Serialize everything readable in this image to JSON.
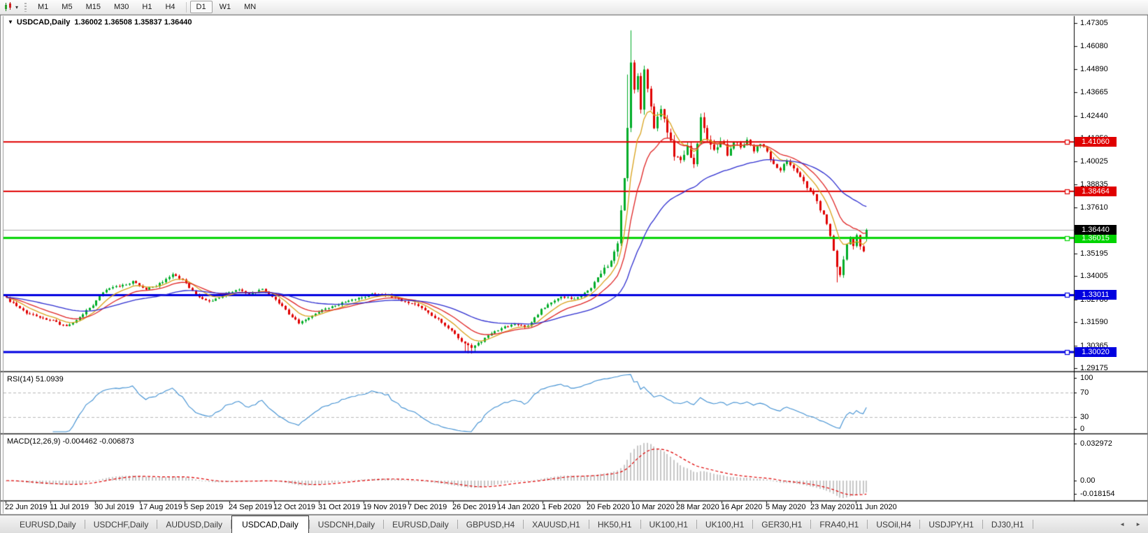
{
  "toolbar": {
    "dropdown_caret": "▾",
    "timeframes": [
      {
        "label": "M1",
        "active": false
      },
      {
        "label": "M5",
        "active": false
      },
      {
        "label": "M15",
        "active": false
      },
      {
        "label": "M30",
        "active": false
      },
      {
        "label": "H1",
        "active": false
      },
      {
        "label": "H4",
        "active": false
      },
      {
        "label": "D1",
        "active": true
      },
      {
        "label": "W1",
        "active": false
      },
      {
        "label": "MN",
        "active": false
      }
    ]
  },
  "chart": {
    "title": "USDCAD,Daily",
    "ohlc": "1.36002 1.36508 1.35837 1.36440",
    "dropdown_caret": "▼"
  },
  "chart_data": {
    "type": "candlestick",
    "symbol": "USDCAD",
    "period": "Daily",
    "last_candle": {
      "open": 1.36002,
      "high": 1.36508,
      "low": 1.35837,
      "close": 1.3644
    },
    "current_price": {
      "label": "1.36440",
      "value": 1.3644,
      "tag_color": "#000000"
    },
    "y_axis_ticks": [
      "1.47305",
      "1.46080",
      "1.44890",
      "1.43665",
      "1.42440",
      "1.41250",
      "1.40025",
      "1.38835",
      "1.37610",
      "1.36385",
      "1.35195",
      "1.34005",
      "1.32780",
      "1.31590",
      "1.30365",
      "1.29175"
    ],
    "x_axis_labels": [
      "22 Jun 2019",
      "11 Jul 2019",
      "30 Jul 2019",
      "17 Aug 2019",
      "5 Sep 2019",
      "24 Sep 2019",
      "12 Oct 2019",
      "31 Oct 2019",
      "19 Nov 2019",
      "7 Dec 2019",
      "26 Dec 2019",
      "14 Jan 2020",
      "1 Feb 2020",
      "20 Feb 2020",
      "10 Mar 2020",
      "28 Mar 2020",
      "16 Apr 2020",
      "5 May 2020",
      "23 May 2020",
      "11 Jun 2020"
    ],
    "horizontal_lines": [
      {
        "label": "1.41060",
        "value": 1.4106,
        "color": "#e00000",
        "width": 2
      },
      {
        "label": "1.38464",
        "value": 1.38464,
        "color": "#e00000",
        "width": 2
      },
      {
        "label": "1.36015",
        "value": 1.36015,
        "color": "#00d400",
        "width": 3
      },
      {
        "label": "1.33011",
        "value": 1.33011,
        "color": "#0000e0",
        "width": 3
      },
      {
        "label": "1.30020",
        "value": 1.3002,
        "color": "#0000e0",
        "width": 3
      }
    ],
    "candle_colors": {
      "bull": "#00ad28",
      "bear": "#e00000"
    },
    "moving_averages": [
      {
        "period": 8,
        "color": "#d9a21b"
      },
      {
        "period": 16,
        "color": "#e02525"
      },
      {
        "period": 42,
        "color": "#2d2dd0"
      }
    ],
    "indicators": {
      "rsi": {
        "label": "RSI(14) 51.0939",
        "value": 51.0939,
        "levels": [
          70,
          30
        ],
        "axis_ticks": [
          "100",
          "70",
          "30",
          "0"
        ],
        "line_color": "#3f8fd2"
      },
      "macd": {
        "label": "MACD(12,26,9) -0.004462 -0.006873",
        "macd_value": -0.004462,
        "signal_value": -0.006873,
        "axis_ticks": [
          "0.032972",
          "0.00",
          "-0.018154"
        ],
        "histogram_color": "#c8c8c8",
        "signal_color": "#e00000"
      }
    },
    "price_anchors": [
      [
        0,
        1.3285
      ],
      [
        3,
        1.324
      ],
      [
        6,
        1.321
      ],
      [
        10,
        1.3185
      ],
      [
        14,
        1.3165
      ],
      [
        18,
        1.3135
      ],
      [
        22,
        1.3185
      ],
      [
        26,
        1.325
      ],
      [
        30,
        1.333
      ],
      [
        34,
        1.335
      ],
      [
        38,
        1.3372
      ],
      [
        42,
        1.333
      ],
      [
        46,
        1.336
      ],
      [
        50,
        1.3415
      ],
      [
        53,
        1.338
      ],
      [
        57,
        1.33
      ],
      [
        61,
        1.3268
      ],
      [
        65,
        1.33
      ],
      [
        69,
        1.333
      ],
      [
        73,
        1.331
      ],
      [
        77,
        1.333
      ],
      [
        81,
        1.328
      ],
      [
        85,
        1.32
      ],
      [
        88,
        1.3155
      ],
      [
        91,
        1.318
      ],
      [
        95,
        1.322
      ],
      [
        99,
        1.3245
      ],
      [
        103,
        1.327
      ],
      [
        107,
        1.329
      ],
      [
        111,
        1.331
      ],
      [
        115,
        1.33
      ],
      [
        119,
        1.327
      ],
      [
        123,
        1.325
      ],
      [
        127,
        1.321
      ],
      [
        131,
        1.316
      ],
      [
        134,
        1.311
      ],
      [
        137,
        1.306
      ],
      [
        140,
        1.302
      ],
      [
        143,
        1.306
      ],
      [
        146,
        1.31
      ],
      [
        149,
        1.313
      ],
      [
        153,
        1.3145
      ],
      [
        157,
        1.3135
      ],
      [
        161,
        1.3225
      ],
      [
        164,
        1.3265
      ],
      [
        167,
        1.3295
      ],
      [
        170,
        1.328
      ],
      [
        173,
        1.33
      ],
      [
        176,
        1.334
      ],
      [
        179,
        1.342
      ],
      [
        182,
        1.348
      ],
      [
        184,
        1.356
      ],
      [
        186,
        1.39
      ],
      [
        187,
        1.418
      ],
      [
        188,
        1.452
      ],
      [
        189,
        1.439
      ],
      [
        190,
        1.445
      ],
      [
        191,
        1.426
      ],
      [
        192,
        1.447
      ],
      [
        193,
        1.439
      ],
      [
        195,
        1.419
      ],
      [
        197,
        1.429
      ],
      [
        199,
        1.416
      ],
      [
        201,
        1.404
      ],
      [
        203,
        1.401
      ],
      [
        205,
        1.408
      ],
      [
        207,
        1.399
      ],
      [
        209,
        1.423
      ],
      [
        211,
        1.412
      ],
      [
        213,
        1.406
      ],
      [
        215,
        1.411
      ],
      [
        217,
        1.405
      ],
      [
        219,
        1.412
      ],
      [
        221,
        1.409
      ],
      [
        223,
        1.411
      ],
      [
        225,
        1.406
      ],
      [
        227,
        1.41
      ],
      [
        229,
        1.405
      ],
      [
        231,
        1.399
      ],
      [
        233,
        1.396
      ],
      [
        235,
        1.401
      ],
      [
        237,
        1.397
      ],
      [
        239,
        1.392
      ],
      [
        241,
        1.387
      ],
      [
        243,
        1.383
      ],
      [
        245,
        1.375
      ],
      [
        247,
        1.368
      ],
      [
        249,
        1.354
      ],
      [
        250,
        1.346
      ],
      [
        251,
        1.341
      ],
      [
        252,
        1.348
      ],
      [
        253,
        1.356
      ],
      [
        254,
        1.36
      ],
      [
        255,
        1.357
      ],
      [
        256,
        1.3615
      ],
      [
        257,
        1.3555
      ],
      [
        258,
        1.3535
      ],
      [
        259,
        1.3644
      ]
    ]
  },
  "tabs": {
    "scroll_left": "◄",
    "scroll_right": "►",
    "items": [
      {
        "label": "EURUSD,Daily",
        "active": false
      },
      {
        "label": "USDCHF,Daily",
        "active": false
      },
      {
        "label": "AUDUSD,Daily",
        "active": false
      },
      {
        "label": "USDCAD,Daily",
        "active": true
      },
      {
        "label": "USDCNH,Daily",
        "active": false
      },
      {
        "label": "EURUSD,Daily",
        "active": false
      },
      {
        "label": "GBPUSD,H4",
        "active": false
      },
      {
        "label": "XAUUSD,H1",
        "active": false
      },
      {
        "label": "HK50,H1",
        "active": false
      },
      {
        "label": "UK100,H1",
        "active": false
      },
      {
        "label": "UK100,H1",
        "active": false
      },
      {
        "label": "GER30,H1",
        "active": false
      },
      {
        "label": "FRA40,H1",
        "active": false
      },
      {
        "label": "USOil,H4",
        "active": false
      },
      {
        "label": "USDJPY,H1",
        "active": false
      },
      {
        "label": "DJ30,H1",
        "active": false
      }
    ]
  }
}
